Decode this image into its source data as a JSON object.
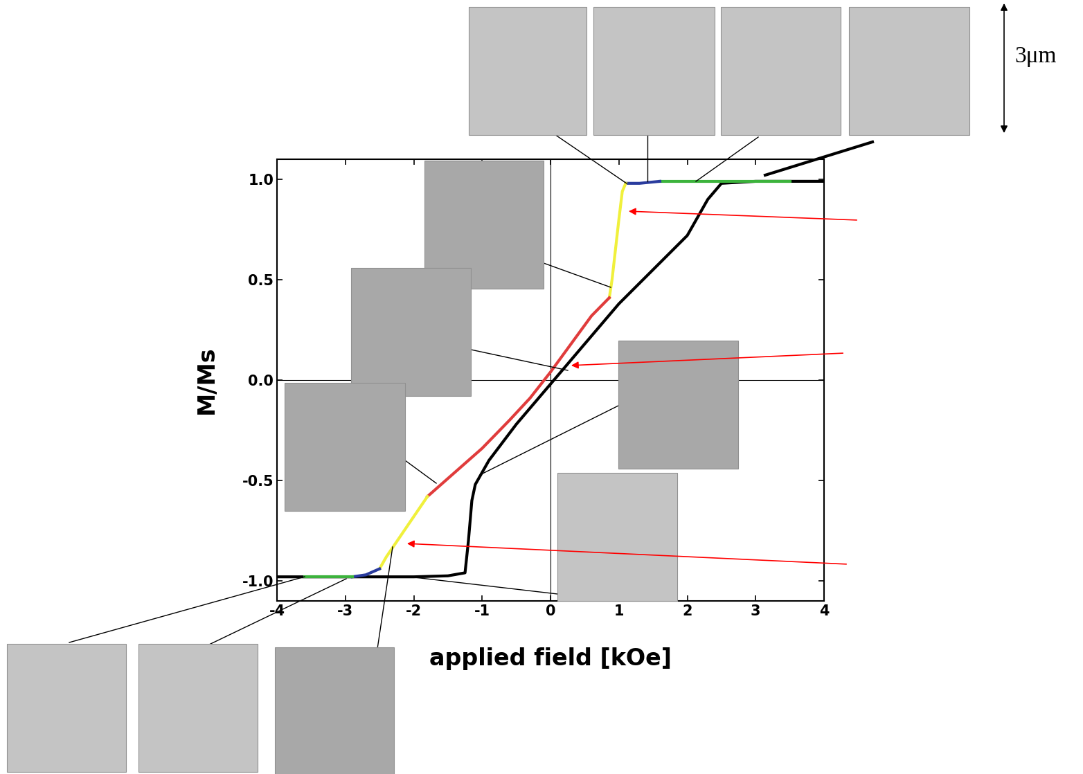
{
  "chart_data": {
    "type": "line",
    "x_label": "applied field [kOe]",
    "y_label": "M/Ms",
    "annotations": [
      "3μm"
    ],
    "xlim": [
      -4,
      4
    ],
    "xticks": [
      -4,
      -3,
      -2,
      -1,
      0,
      1,
      2,
      3,
      4
    ],
    "ylim": [
      -1.1,
      1.1
    ],
    "yticks": [
      -1.0,
      -0.5,
      0.0,
      0.5,
      1.0
    ],
    "grid": false,
    "series": [
      {
        "color": "#000000",
        "x": [
          -4,
          -3,
          -2,
          -1.5,
          -1.25,
          -1.2,
          -1.15,
          -1.1,
          -1.0,
          -0.9,
          -0.5,
          0,
          0.5,
          1.0,
          1.5,
          2.0,
          2.3,
          2.5,
          3,
          4
        ],
        "values": [
          -0.98,
          -0.98,
          -0.98,
          -0.975,
          -0.96,
          -0.8,
          -0.6,
          -0.52,
          -0.46,
          -0.4,
          -0.22,
          -0.02,
          0.18,
          0.38,
          0.55,
          0.72,
          0.9,
          0.98,
          0.99,
          0.99
        ]
      },
      {
        "color": "#3cb33c",
        "x": [
          3.5,
          3,
          2.5,
          2,
          1.6
        ],
        "values": [
          0.99,
          0.99,
          0.99,
          0.99,
          0.99
        ]
      },
      {
        "color": "#2a3c9e",
        "x": [
          1.6,
          1.3,
          1.1
        ],
        "values": [
          0.99,
          0.98,
          0.98
        ]
      },
      {
        "color": "#f0f03c",
        "x": [
          1.1,
          1.05,
          1.0,
          0.95,
          0.9,
          0.86
        ],
        "values": [
          0.98,
          0.94,
          0.8,
          0.65,
          0.5,
          0.41
        ]
      },
      {
        "color": "#e03c3c",
        "x": [
          0.86,
          0.6,
          0.3,
          0,
          -0.3,
          -0.6,
          -1.0,
          -1.4,
          -1.8
        ],
        "values": [
          0.41,
          0.32,
          0.18,
          0.04,
          -0.09,
          -0.2,
          -0.34,
          -0.46,
          -0.58
        ]
      },
      {
        "color": "#f0f03c",
        "x": [
          -1.8,
          -2.0,
          -2.2,
          -2.4,
          -2.5
        ],
        "values": [
          -0.58,
          -0.68,
          -0.78,
          -0.88,
          -0.94
        ]
      },
      {
        "color": "#2a3c9e",
        "x": [
          -2.5,
          -2.7,
          -2.9
        ],
        "values": [
          -0.94,
          -0.97,
          -0.98
        ]
      },
      {
        "color": "#3cb33c",
        "x": [
          -2.9,
          -3.3,
          -3.6
        ],
        "values": [
          -0.98,
          -0.98,
          -0.98
        ]
      }
    ]
  }
}
